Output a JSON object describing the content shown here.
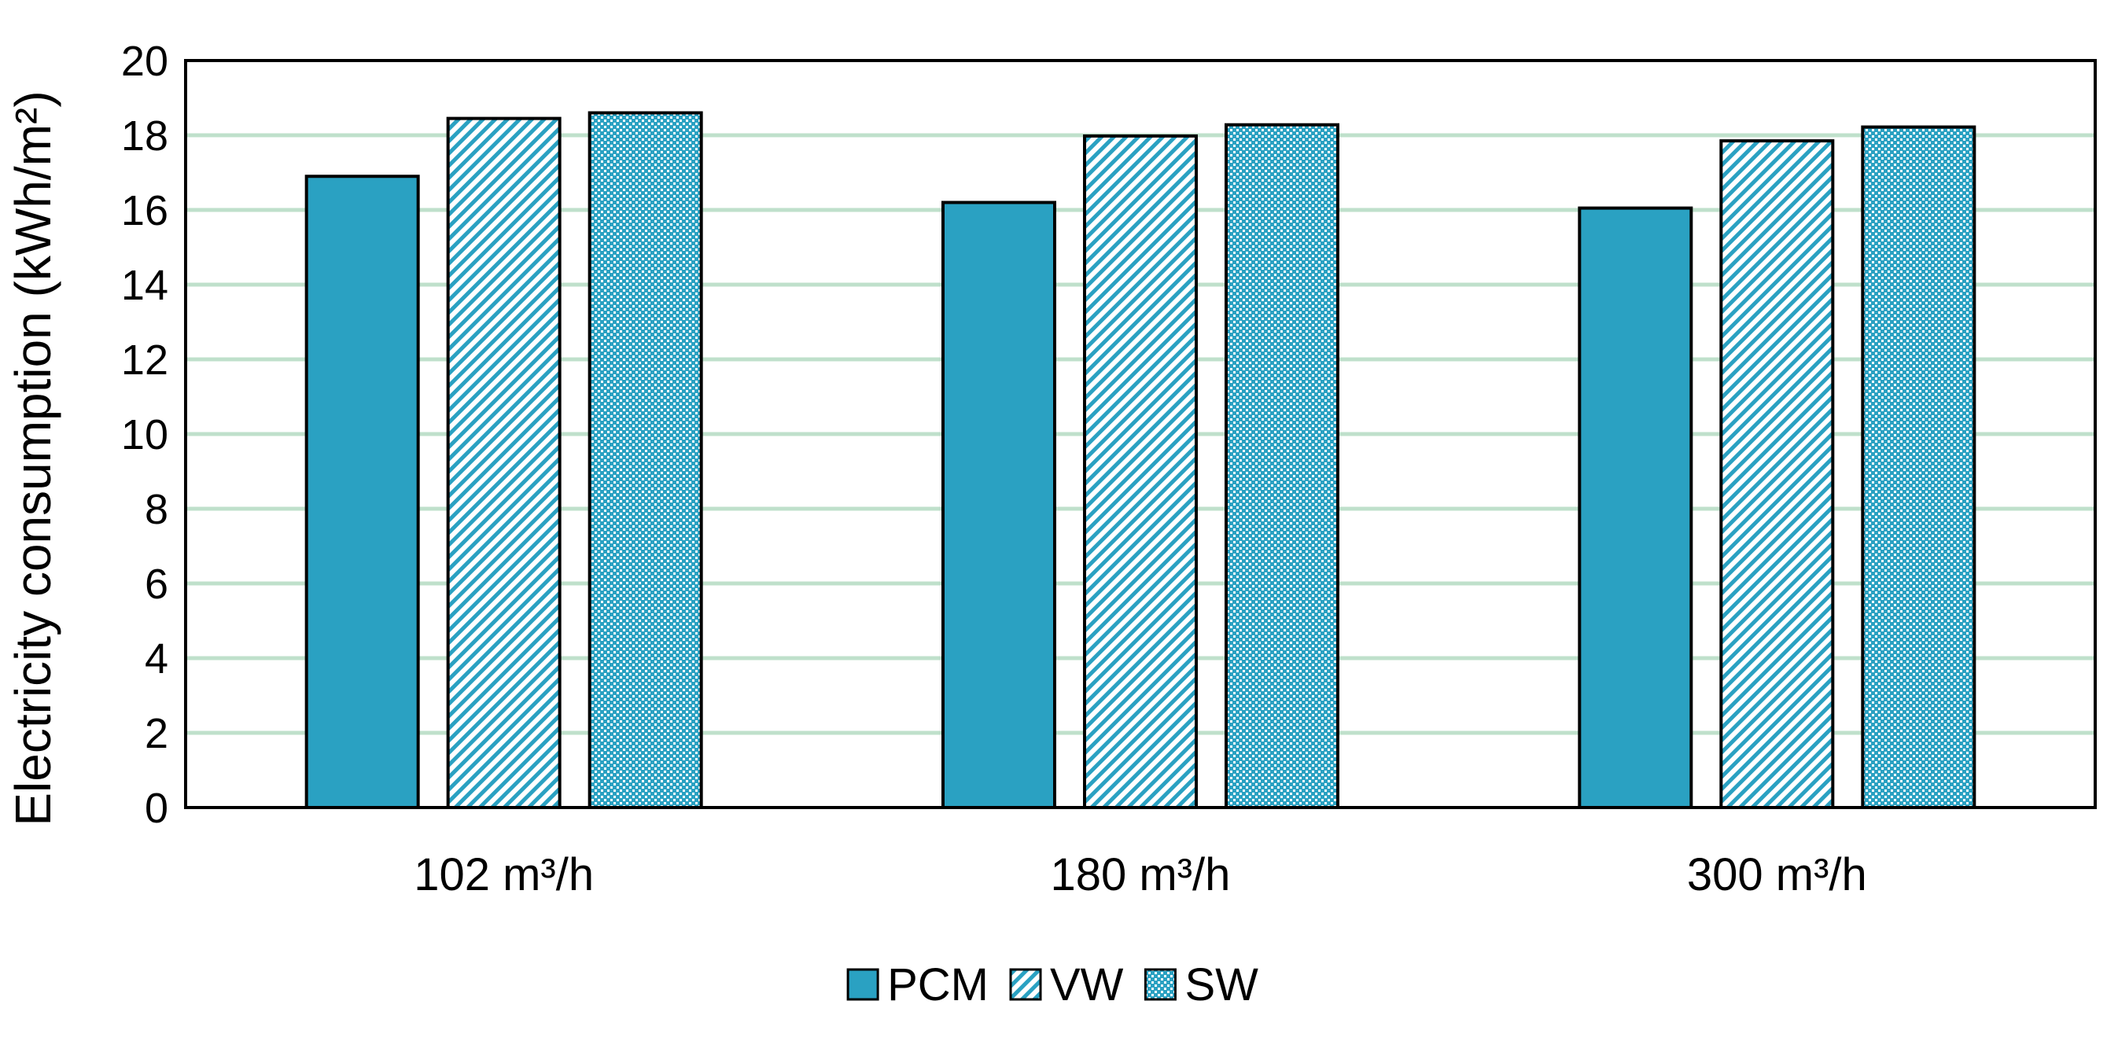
{
  "chart_data": {
    "type": "bar",
    "categories": [
      "102 m³/h",
      "180 m³/h",
      "300 m³/h"
    ],
    "series": [
      {
        "name": "PCM",
        "values": [
          16.9,
          16.2,
          16.05
        ],
        "fill": "solid"
      },
      {
        "name": "VW",
        "values": [
          18.45,
          17.98,
          17.85
        ],
        "fill": "diagonal-hatch"
      },
      {
        "name": "SW",
        "values": [
          18.6,
          18.28,
          18.22
        ],
        "fill": "dotted-hatch"
      }
    ],
    "title": "",
    "xlabel": "",
    "ylabel": "Electricity consumption (kWh/m²)",
    "ylim": [
      0,
      20
    ],
    "yticks": [
      0,
      2,
      4,
      6,
      8,
      10,
      12,
      14,
      16,
      18,
      20
    ],
    "grid": "horizontal",
    "legend_position": "bottom-center",
    "colors": {
      "bar": "#2aa1c2",
      "grid": "#bfe0cb",
      "axis": "#000000"
    }
  }
}
